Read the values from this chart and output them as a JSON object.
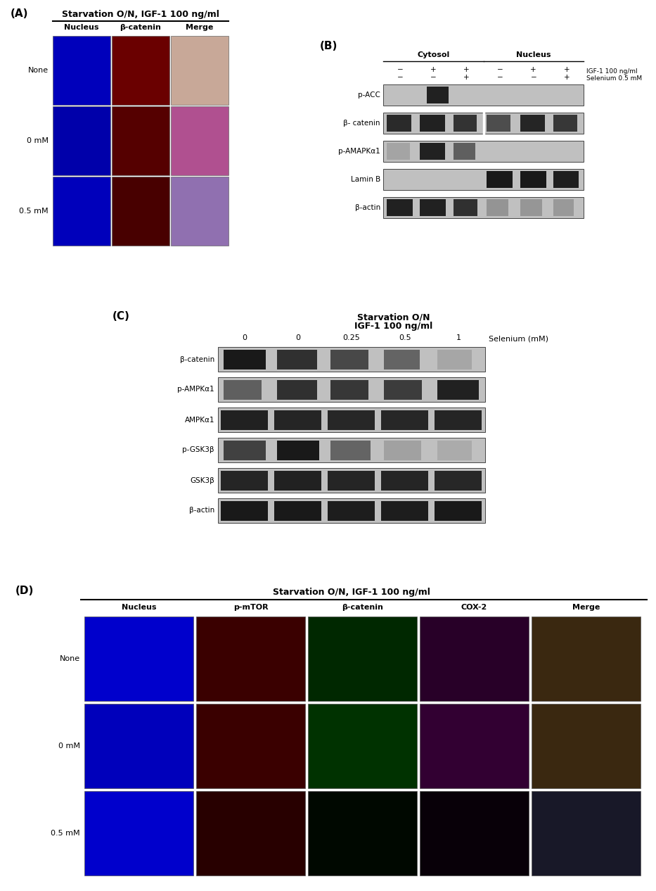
{
  "panel_A": {
    "label": "(A)",
    "title": "Starvation O/N, IGF-1 100 ng/ml",
    "col_headers": [
      "Nucleus",
      "β-catenin",
      "Merge"
    ],
    "row_labels": [
      "None",
      "0 mM",
      "0.5 mM"
    ],
    "cell_colors_row0": [
      "#0000bb",
      "#6a0000",
      "#c8a898"
    ],
    "cell_colors_row1": [
      "#0000aa",
      "#550000",
      "#b05090"
    ],
    "cell_colors_row2": [
      "#0000bb",
      "#480000",
      "#9070b0"
    ]
  },
  "panel_B": {
    "label": "(B)",
    "cytosol_label": "Cytosol",
    "nucleus_label": "Nucleus",
    "row1_signs": [
      "−",
      "+",
      "+",
      "−",
      "+",
      "+"
    ],
    "row2_signs": [
      "−",
      "−",
      "+",
      "−",
      "−",
      "+"
    ],
    "igf1_label": "IGF-1 100 ng/ml",
    "selenium_label": "Selenium 0.5 mM",
    "band_labels": [
      "p-ACC",
      "β- catenin",
      "p-AMAPKα1",
      "Lamin B",
      "β-actin"
    ]
  },
  "panel_C": {
    "label": "(C)",
    "title_line1": "Starvation O/N",
    "title_line2": "IGF-1 100 ng/ml",
    "selenium_label": "Selenium (mM)",
    "selenium_vals": [
      "0",
      "0",
      "0.25",
      "0.5",
      "1"
    ],
    "band_labels": [
      "β-catenin",
      "p-AMPKα1",
      "AMPKα1",
      "p-GSK3β",
      "GSK3β",
      "β-actin"
    ]
  },
  "panel_D": {
    "label": "(D)",
    "title": "Starvation O/N, IGF-1 100 ng/ml",
    "col_headers": [
      "Nucleus",
      "p-mTOR",
      "β-catenin",
      "COX-2",
      "Merge"
    ],
    "row_labels": [
      "None",
      "0 mM",
      "0.5 mM"
    ],
    "cell_colors_row0": [
      "#0000cc",
      "#3a0000",
      "#002800",
      "#280028",
      "#3a2810"
    ],
    "cell_colors_row1": [
      "#0000bb",
      "#3a0000",
      "#003200",
      "#320032",
      "#3a2810"
    ],
    "cell_colors_row2": [
      "#0000cc",
      "#280000",
      "#000800",
      "#080008",
      "#181828"
    ]
  },
  "background_color": "#ffffff",
  "text_color": "#000000"
}
